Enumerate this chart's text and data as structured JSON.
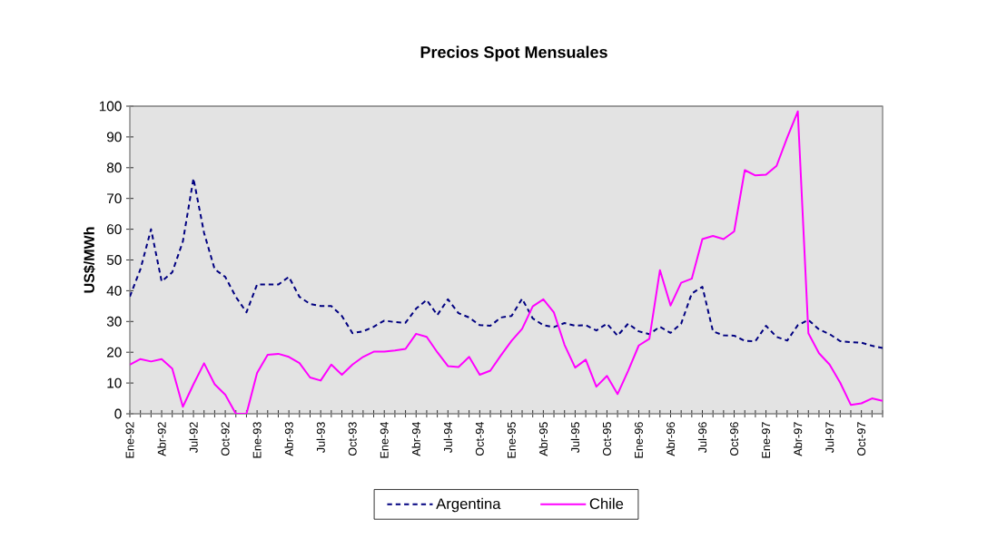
{
  "chart_data": {
    "type": "line",
    "title": "Precios Spot Mensuales",
    "ylabel": "US$/MWh",
    "categories": [
      "Ene-92",
      null,
      null,
      "Abr-92",
      null,
      null,
      "Jul-92",
      null,
      null,
      "Oct-92",
      null,
      null,
      "Ene-93",
      null,
      null,
      "Abr-93",
      null,
      null,
      "Jul-93",
      null,
      null,
      "Oct-93",
      null,
      null,
      "Ene-94",
      null,
      null,
      "Abr-94",
      null,
      null,
      "Jul-94",
      null,
      null,
      "Oct-94",
      null,
      null,
      "Ene-95",
      null,
      null,
      "Abr-95",
      null,
      null,
      "Jul-95",
      null,
      null,
      "Oct-95",
      null,
      null,
      "Ene-96",
      null,
      null,
      "Abr-96",
      null,
      null,
      "Jul-96",
      null,
      null,
      "Oct-96",
      null,
      null,
      "Ene-97",
      null,
      null,
      "Abr-97",
      null,
      null,
      "Jul-97",
      null,
      null,
      "Oct-97",
      null,
      null
    ],
    "series": [
      {
        "name": "Argentina",
        "color": "#000080",
        "line_style": "dashed",
        "values": [
          38.1,
          47,
          60,
          43,
          46,
          56,
          76.5,
          58.8,
          47,
          44.5,
          38,
          33,
          42,
          42,
          42,
          44.5,
          38,
          35.7,
          35,
          35,
          31.8,
          26.2,
          26.8,
          28.3,
          30.3,
          29.8,
          29.6,
          34.2,
          37,
          32.1,
          37.2,
          32.7,
          31.3,
          28.8,
          28.6,
          31.3,
          31.8,
          37.4,
          31,
          28.8,
          28.2,
          29.5,
          28.6,
          28.8,
          27.1,
          29.3,
          25.4,
          29.3,
          26.8,
          25.9,
          28.3,
          26.3,
          29.3,
          39.1,
          41.3,
          26.8,
          25.5,
          25.4,
          23.7,
          23.6,
          28.6,
          25,
          23.8,
          28.8,
          30.5,
          27.4,
          25.9,
          23.6,
          23.3,
          23.1,
          22.1,
          21.4
        ]
      },
      {
        "name": "Chile",
        "color": "#ff00ff",
        "line_style": "solid",
        "values": [
          16,
          17.8,
          17,
          17.8,
          14.7,
          2.3,
          9.6,
          16.4,
          9.6,
          6.2,
          0,
          0,
          13.3,
          19.2,
          19.5,
          18.5,
          16.5,
          11.8,
          10.8,
          16,
          12.7,
          16,
          18.5,
          20.2,
          20.2,
          20.6,
          21.1,
          26,
          25,
          20,
          15.5,
          15.2,
          18.5,
          12.7,
          14,
          19,
          23.7,
          27.6,
          34.9,
          37.2,
          32.9,
          22.4,
          15,
          17.6,
          8.8,
          12.3,
          6.4,
          14,
          22.2,
          24.4,
          46.7,
          35.2,
          42.6,
          43.9,
          56.8,
          57.8,
          56.8,
          59.3,
          79.2,
          77.5,
          77.7,
          80.6,
          89.8,
          98.3,
          26.2,
          19.7,
          16,
          10.1,
          2.9,
          3.4,
          5,
          4.2
        ]
      }
    ],
    "ylim": [
      0,
      100
    ],
    "yticks": [
      0,
      10,
      20,
      30,
      40,
      50,
      60,
      70,
      80,
      90,
      100
    ],
    "legend": "bottom",
    "marker": "none"
  }
}
